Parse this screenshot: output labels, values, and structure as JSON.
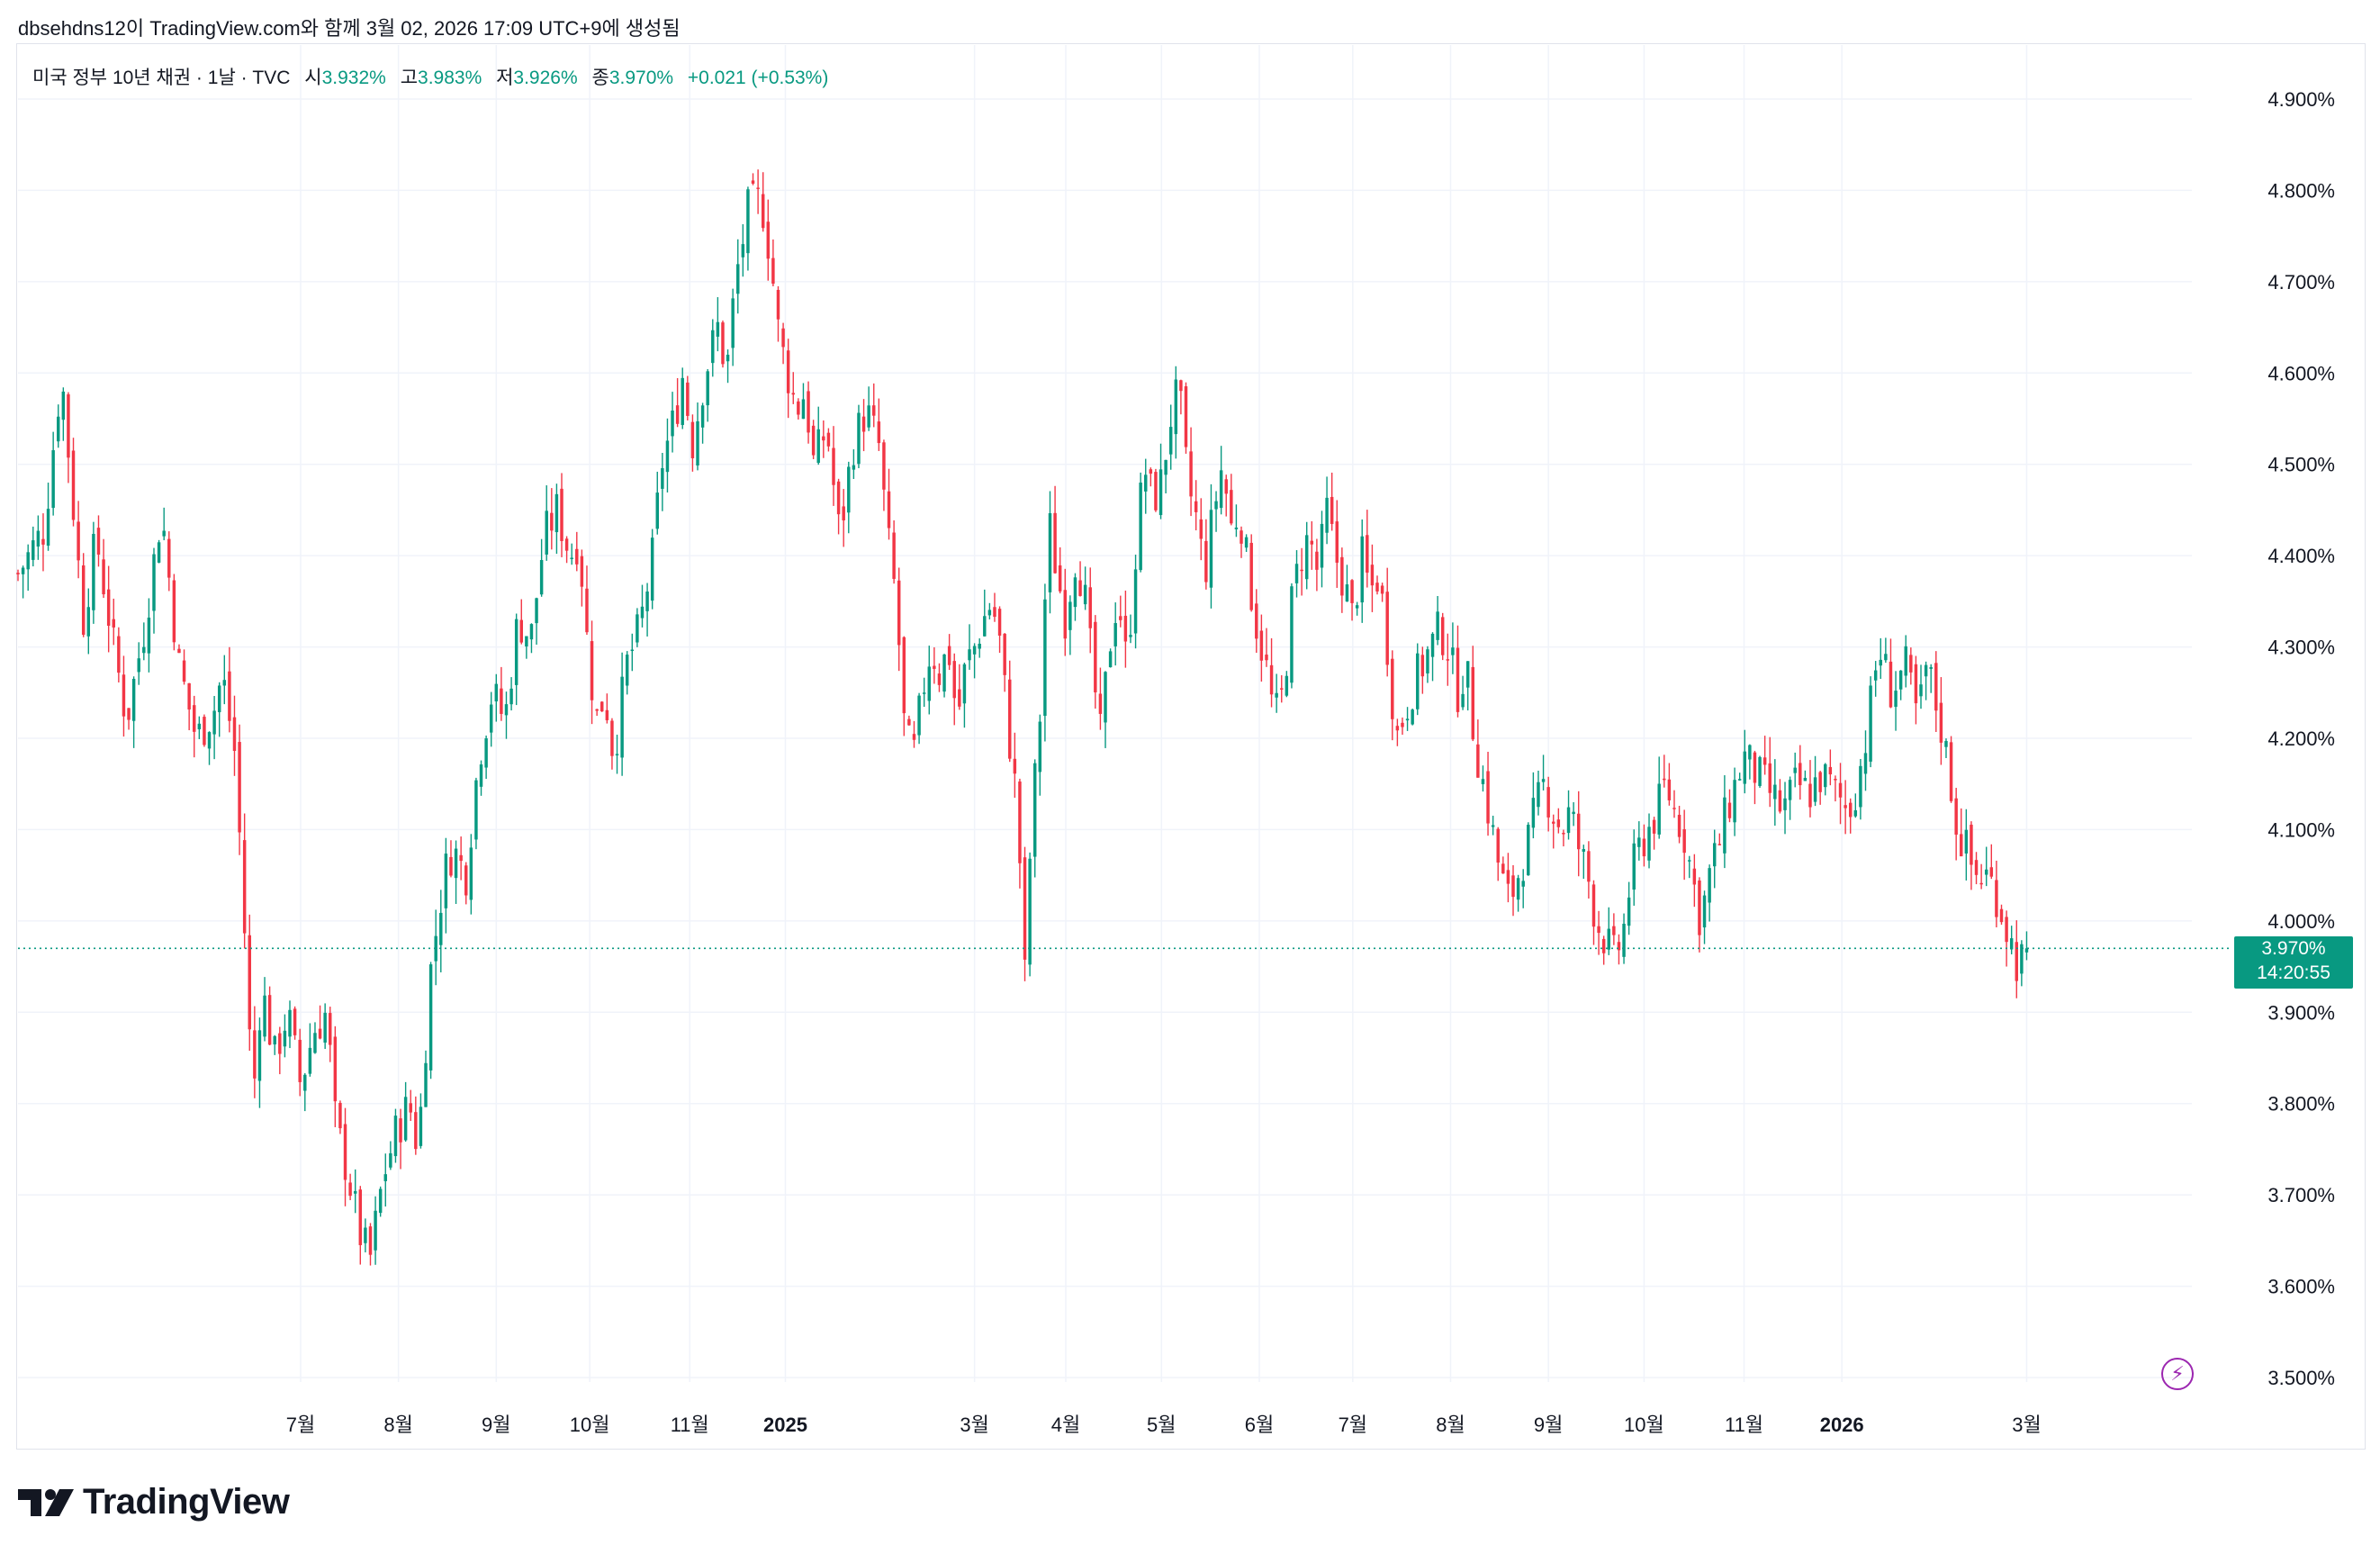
{
  "header": {
    "attribution": "dbsehdns12이 TradingView.com와 함께 3월 02, 2026 17:09 UTC+9에 생성됨"
  },
  "legend": {
    "symbol": "미국 정부 10년 채권 · 1날 · TVC",
    "open_label": "시",
    "open_value": "3.932%",
    "high_label": "고",
    "high_value": "3.983%",
    "low_label": "저",
    "low_value": "3.926%",
    "close_label": "종",
    "close_value": "3.970%",
    "change": "+0.021 (+0.53%)"
  },
  "price_tag": {
    "value": "3.970%",
    "countdown": "14:20:55"
  },
  "logo": {
    "text": "TradingView"
  },
  "colors": {
    "up": "#089981",
    "down": "#f23645",
    "grid": "#f0f3fa",
    "axis_text": "#131722",
    "accent": "#9c27b0"
  },
  "icons": {
    "flash": "lightning-icon",
    "logo": "tradingview-logo-icon"
  },
  "chart_data": {
    "type": "candlestick",
    "title": "미국 정부 10년 채권 · 1날 · TVC",
    "ylim": [
      3.45,
      4.95
    ],
    "last_close": 3.97,
    "y_ticks": [
      "4.900%",
      "4.800%",
      "4.700%",
      "4.600%",
      "4.500%",
      "4.400%",
      "4.300%",
      "4.200%",
      "4.100%",
      "4.000%",
      "3.900%",
      "3.800%",
      "3.700%",
      "3.600%",
      "3.500%"
    ],
    "y_tick_values": [
      4.9,
      4.8,
      4.7,
      4.6,
      4.5,
      4.4,
      4.3,
      4.2,
      4.1,
      4.0,
      3.9,
      3.8,
      3.7,
      3.6,
      3.5
    ],
    "x_ticks": [
      {
        "label": "7월",
        "bold": false,
        "day": 0.13
      },
      {
        "label": "8월",
        "bold": false,
        "day": 0.175
      },
      {
        "label": "9월",
        "bold": false,
        "day": 0.22
      },
      {
        "label": "10월",
        "bold": false,
        "day": 0.263
      },
      {
        "label": "11월",
        "bold": false,
        "day": 0.309
      },
      {
        "label": "2025",
        "bold": true,
        "day": 0.353
      },
      {
        "label": "3월",
        "bold": false,
        "day": 0.44
      },
      {
        "label": "4월",
        "bold": false,
        "day": 0.482
      },
      {
        "label": "5월",
        "bold": false,
        "day": 0.526
      },
      {
        "label": "6월",
        "bold": false,
        "day": 0.571
      },
      {
        "label": "7월",
        "bold": false,
        "day": 0.614
      },
      {
        "label": "8월",
        "bold": false,
        "day": 0.659
      },
      {
        "label": "9월",
        "bold": false,
        "day": 0.704
      },
      {
        "label": "10월",
        "bold": false,
        "day": 0.748
      },
      {
        "label": "11월",
        "bold": false,
        "day": 0.794
      },
      {
        "label": "2026",
        "bold": true,
        "day": 0.839
      },
      {
        "label": "3월",
        "bold": false,
        "day": 0.924
      }
    ],
    "path_keypoints": [
      [
        0.0,
        4.38
      ],
      [
        0.012,
        4.43
      ],
      [
        0.02,
        4.6
      ],
      [
        0.03,
        4.33
      ],
      [
        0.036,
        4.42
      ],
      [
        0.044,
        4.3
      ],
      [
        0.05,
        4.22
      ],
      [
        0.058,
        4.32
      ],
      [
        0.066,
        4.45
      ],
      [
        0.074,
        4.28
      ],
      [
        0.082,
        4.2
      ],
      [
        0.09,
        4.23
      ],
      [
        0.094,
        4.27
      ],
      [
        0.1,
        4.18
      ],
      [
        0.104,
        4.0
      ],
      [
        0.108,
        3.8
      ],
      [
        0.112,
        3.93
      ],
      [
        0.118,
        3.85
      ],
      [
        0.124,
        3.9
      ],
      [
        0.13,
        3.82
      ],
      [
        0.136,
        3.88
      ],
      [
        0.142,
        3.9
      ],
      [
        0.146,
        3.78
      ],
      [
        0.152,
        3.72
      ],
      [
        0.158,
        3.65
      ],
      [
        0.162,
        3.63
      ],
      [
        0.168,
        3.72
      ],
      [
        0.174,
        3.77
      ],
      [
        0.18,
        3.8
      ],
      [
        0.184,
        3.75
      ],
      [
        0.19,
        3.95
      ],
      [
        0.196,
        4.05
      ],
      [
        0.2,
        4.08
      ],
      [
        0.206,
        4.05
      ],
      [
        0.212,
        4.18
      ],
      [
        0.218,
        4.25
      ],
      [
        0.224,
        4.22
      ],
      [
        0.23,
        4.33
      ],
      [
        0.236,
        4.31
      ],
      [
        0.242,
        4.42
      ],
      [
        0.248,
        4.45
      ],
      [
        0.254,
        4.4
      ],
      [
        0.258,
        4.42
      ],
      [
        0.262,
        4.3
      ],
      [
        0.266,
        4.22
      ],
      [
        0.27,
        4.25
      ],
      [
        0.274,
        4.18
      ],
      [
        0.28,
        4.28
      ],
      [
        0.286,
        4.32
      ],
      [
        0.292,
        4.4
      ],
      [
        0.296,
        4.5
      ],
      [
        0.302,
        4.55
      ],
      [
        0.306,
        4.6
      ],
      [
        0.31,
        4.52
      ],
      [
        0.316,
        4.6
      ],
      [
        0.322,
        4.65
      ],
      [
        0.326,
        4.6
      ],
      [
        0.33,
        4.7
      ],
      [
        0.336,
        4.78
      ],
      [
        0.342,
        4.79
      ],
      [
        0.346,
        4.73
      ],
      [
        0.35,
        4.64
      ],
      [
        0.354,
        4.6
      ],
      [
        0.358,
        4.56
      ],
      [
        0.362,
        4.58
      ],
      [
        0.366,
        4.5
      ],
      [
        0.372,
        4.54
      ],
      [
        0.378,
        4.42
      ],
      [
        0.384,
        4.52
      ],
      [
        0.39,
        4.56
      ],
      [
        0.396,
        4.52
      ],
      [
        0.4,
        4.42
      ],
      [
        0.404,
        4.35
      ],
      [
        0.408,
        4.2
      ],
      [
        0.412,
        4.18
      ],
      [
        0.416,
        4.25
      ],
      [
        0.42,
        4.3
      ],
      [
        0.424,
        4.27
      ],
      [
        0.428,
        4.3
      ],
      [
        0.432,
        4.22
      ],
      [
        0.436,
        4.28
      ],
      [
        0.44,
        4.3
      ],
      [
        0.444,
        4.33
      ],
      [
        0.448,
        4.35
      ],
      [
        0.452,
        4.3
      ],
      [
        0.456,
        4.2
      ],
      [
        0.46,
        4.12
      ],
      [
        0.463,
        3.93
      ],
      [
        0.466,
        4.1
      ],
      [
        0.47,
        4.22
      ],
      [
        0.474,
        4.44
      ],
      [
        0.478,
        4.38
      ],
      [
        0.482,
        4.33
      ],
      [
        0.486,
        4.4
      ],
      [
        0.49,
        4.37
      ],
      [
        0.494,
        4.28
      ],
      [
        0.498,
        4.2
      ],
      [
        0.502,
        4.3
      ],
      [
        0.506,
        4.36
      ],
      [
        0.51,
        4.28
      ],
      [
        0.514,
        4.4
      ],
      [
        0.518,
        4.5
      ],
      [
        0.522,
        4.46
      ],
      [
        0.526,
        4.48
      ],
      [
        0.53,
        4.55
      ],
      [
        0.534,
        4.58
      ],
      [
        0.538,
        4.48
      ],
      [
        0.542,
        4.44
      ],
      [
        0.546,
        4.38
      ],
      [
        0.55,
        4.45
      ],
      [
        0.554,
        4.5
      ],
      [
        0.558,
        4.43
      ],
      [
        0.562,
        4.45
      ],
      [
        0.566,
        4.38
      ],
      [
        0.57,
        4.32
      ],
      [
        0.574,
        4.28
      ],
      [
        0.578,
        4.22
      ],
      [
        0.582,
        4.25
      ],
      [
        0.586,
        4.35
      ],
      [
        0.59,
        4.4
      ],
      [
        0.594,
        4.42
      ],
      [
        0.598,
        4.38
      ],
      [
        0.602,
        4.45
      ],
      [
        0.606,
        4.4
      ],
      [
        0.61,
        4.37
      ],
      [
        0.614,
        4.33
      ],
      [
        0.618,
        4.4
      ],
      [
        0.622,
        4.36
      ],
      [
        0.626,
        4.38
      ],
      [
        0.63,
        4.3
      ],
      [
        0.634,
        4.2
      ],
      [
        0.638,
        4.23
      ],
      [
        0.642,
        4.26
      ],
      [
        0.646,
        4.28
      ],
      [
        0.65,
        4.3
      ],
      [
        0.654,
        4.32
      ],
      [
        0.658,
        4.3
      ],
      [
        0.662,
        4.25
      ],
      [
        0.666,
        4.28
      ],
      [
        0.67,
        4.2
      ],
      [
        0.674,
        4.15
      ],
      [
        0.678,
        4.1
      ],
      [
        0.682,
        4.05
      ],
      [
        0.686,
        4.02
      ],
      [
        0.69,
        4.05
      ],
      [
        0.694,
        4.08
      ],
      [
        0.698,
        4.12
      ],
      [
        0.702,
        4.15
      ],
      [
        0.706,
        4.12
      ],
      [
        0.71,
        4.1
      ],
      [
        0.714,
        4.12
      ],
      [
        0.718,
        4.08
      ],
      [
        0.722,
        4.05
      ],
      [
        0.726,
        4.0
      ],
      [
        0.73,
        3.98
      ],
      [
        0.734,
        3.96
      ],
      [
        0.738,
        3.98
      ],
      [
        0.742,
        4.05
      ],
      [
        0.746,
        4.08
      ],
      [
        0.75,
        4.1
      ],
      [
        0.754,
        4.12
      ],
      [
        0.758,
        4.15
      ],
      [
        0.762,
        4.12
      ],
      [
        0.766,
        4.1
      ],
      [
        0.77,
        4.05
      ],
      [
        0.774,
        4.0
      ],
      [
        0.778,
        4.05
      ],
      [
        0.782,
        4.08
      ],
      [
        0.786,
        4.12
      ],
      [
        0.79,
        4.15
      ],
      [
        0.794,
        4.18
      ],
      [
        0.8,
        4.16
      ],
      [
        0.806,
        4.14
      ],
      [
        0.812,
        4.12
      ],
      [
        0.818,
        4.15
      ],
      [
        0.824,
        4.14
      ],
      [
        0.83,
        4.16
      ],
      [
        0.836,
        4.14
      ],
      [
        0.842,
        4.12
      ],
      [
        0.846,
        4.15
      ],
      [
        0.85,
        4.2
      ],
      [
        0.856,
        4.3
      ],
      [
        0.862,
        4.25
      ],
      [
        0.868,
        4.28
      ],
      [
        0.874,
        4.22
      ],
      [
        0.878,
        4.28
      ],
      [
        0.884,
        4.22
      ],
      [
        0.888,
        4.17
      ],
      [
        0.892,
        4.1
      ],
      [
        0.896,
        4.08
      ],
      [
        0.9,
        4.05
      ],
      [
        0.906,
        4.05
      ],
      [
        0.91,
        4.03
      ],
      [
        0.915,
        3.99
      ],
      [
        0.92,
        3.95
      ],
      [
        0.924,
        3.97
      ]
    ]
  }
}
